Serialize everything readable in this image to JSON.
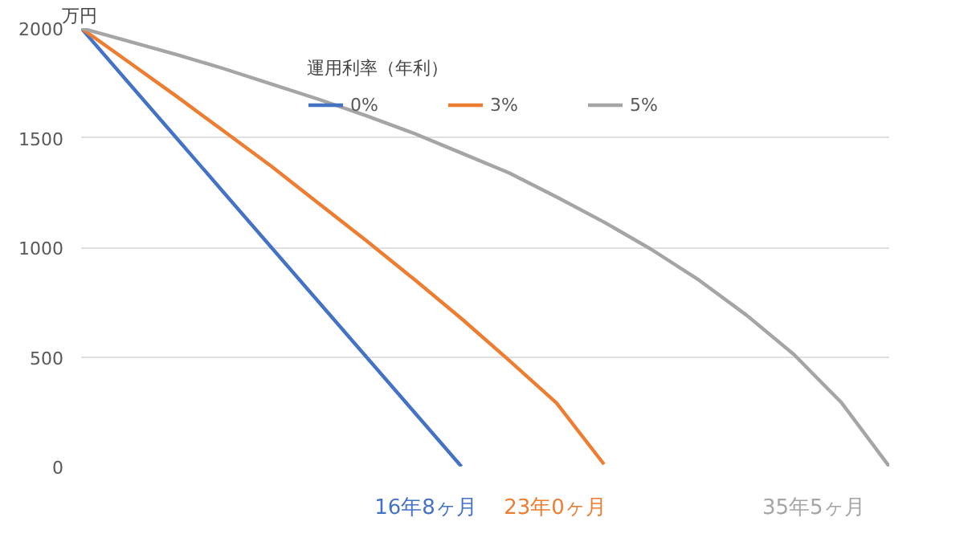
{
  "chart_data": {
    "type": "line",
    "ylabel": "万円",
    "legend_title": "運用利率（年利）",
    "legend": "top",
    "grid": "y",
    "tick_labels": "y",
    "line_style": "solid",
    "marker": "none",
    "ylim": [
      0,
      2000
    ],
    "yticks": [
      0,
      500,
      1000,
      1500,
      2000
    ],
    "categories": [
      null,
      null,
      null,
      null,
      null,
      null,
      null,
      null,
      null,
      null,
      null,
      null,
      null,
      null,
      null,
      null,
      null,
      null
    ],
    "series": [
      {
        "name": "0%",
        "color": "#4472c4",
        "values": [
          2000,
          1750,
          1500,
          1250,
          1000,
          750,
          500,
          250,
          0,
          null,
          null,
          null,
          null,
          null,
          null,
          null,
          null,
          null
        ]
      },
      {
        "name": "3%",
        "color": "#ed7d31",
        "values": [
          2000,
          1845,
          1690,
          1530,
          1370,
          1200,
          1030,
          855,
          675,
          485,
          290,
          10,
          null,
          null,
          null,
          null,
          null,
          null
        ]
      },
      {
        "name": "5%",
        "color": "#a5a5a5",
        "values": [
          2000,
          1940,
          1880,
          1815,
          1745,
          1675,
          1600,
          1520,
          1430,
          1340,
          1230,
          1115,
          990,
          850,
          690,
          510,
          290,
          0
        ]
      }
    ],
    "annotations": [
      "16年8ヶ月",
      "23年0ヶ月",
      "35年5ヶ月"
    ]
  }
}
